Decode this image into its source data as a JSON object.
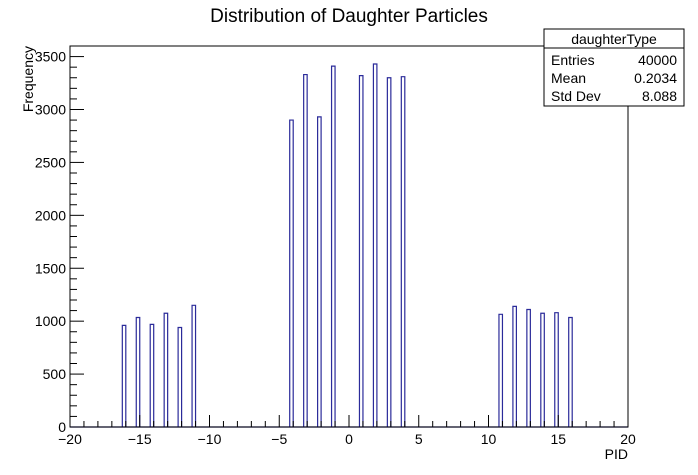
{
  "chart_data": {
    "type": "bar",
    "title": "Distribution of Daughter Particles",
    "xlabel": "PID",
    "ylabel": "Frequency",
    "xlim": [
      -20,
      20
    ],
    "ylim": [
      0,
      3600
    ],
    "bin_width": 0.5,
    "x_ticks": [
      -20,
      -15,
      -10,
      -5,
      0,
      5,
      10,
      15,
      20
    ],
    "x_tick_labels": [
      "−20",
      "−15",
      "−10",
      "−5",
      "0",
      "5",
      "10",
      "15",
      "20"
    ],
    "y_ticks": [
      0,
      500,
      1000,
      1500,
      2000,
      2500,
      3000,
      3500
    ],
    "y_tick_labels": [
      "0",
      "500",
      "1000",
      "1500",
      "2000",
      "2500",
      "3000",
      "3500"
    ],
    "bars": [
      {
        "x": -16,
        "value": 960
      },
      {
        "x": -15,
        "value": 1035
      },
      {
        "x": -14,
        "value": 970
      },
      {
        "x": -13,
        "value": 1075
      },
      {
        "x": -12,
        "value": 940
      },
      {
        "x": -11,
        "value": 1150
      },
      {
        "x": -4,
        "value": 2900
      },
      {
        "x": -3,
        "value": 3330
      },
      {
        "x": -2,
        "value": 2930
      },
      {
        "x": -1,
        "value": 3410
      },
      {
        "x": 1,
        "value": 3320
      },
      {
        "x": 2,
        "value": 3430
      },
      {
        "x": 3,
        "value": 3300
      },
      {
        "x": 4,
        "value": 3310
      },
      {
        "x": 11,
        "value": 1065
      },
      {
        "x": 12,
        "value": 1140
      },
      {
        "x": 13,
        "value": 1110
      },
      {
        "x": 14,
        "value": 1075
      },
      {
        "x": 15,
        "value": 1080
      },
      {
        "x": 16,
        "value": 1035
      }
    ],
    "line_color": "#2b2b9a",
    "stats_box": {
      "name": "daughterType",
      "rows": [
        {
          "label": "Entries",
          "value": "40000"
        },
        {
          "label": "Mean",
          "value": "0.2034"
        },
        {
          "label": "Std Dev",
          "value": "8.088"
        }
      ]
    }
  }
}
